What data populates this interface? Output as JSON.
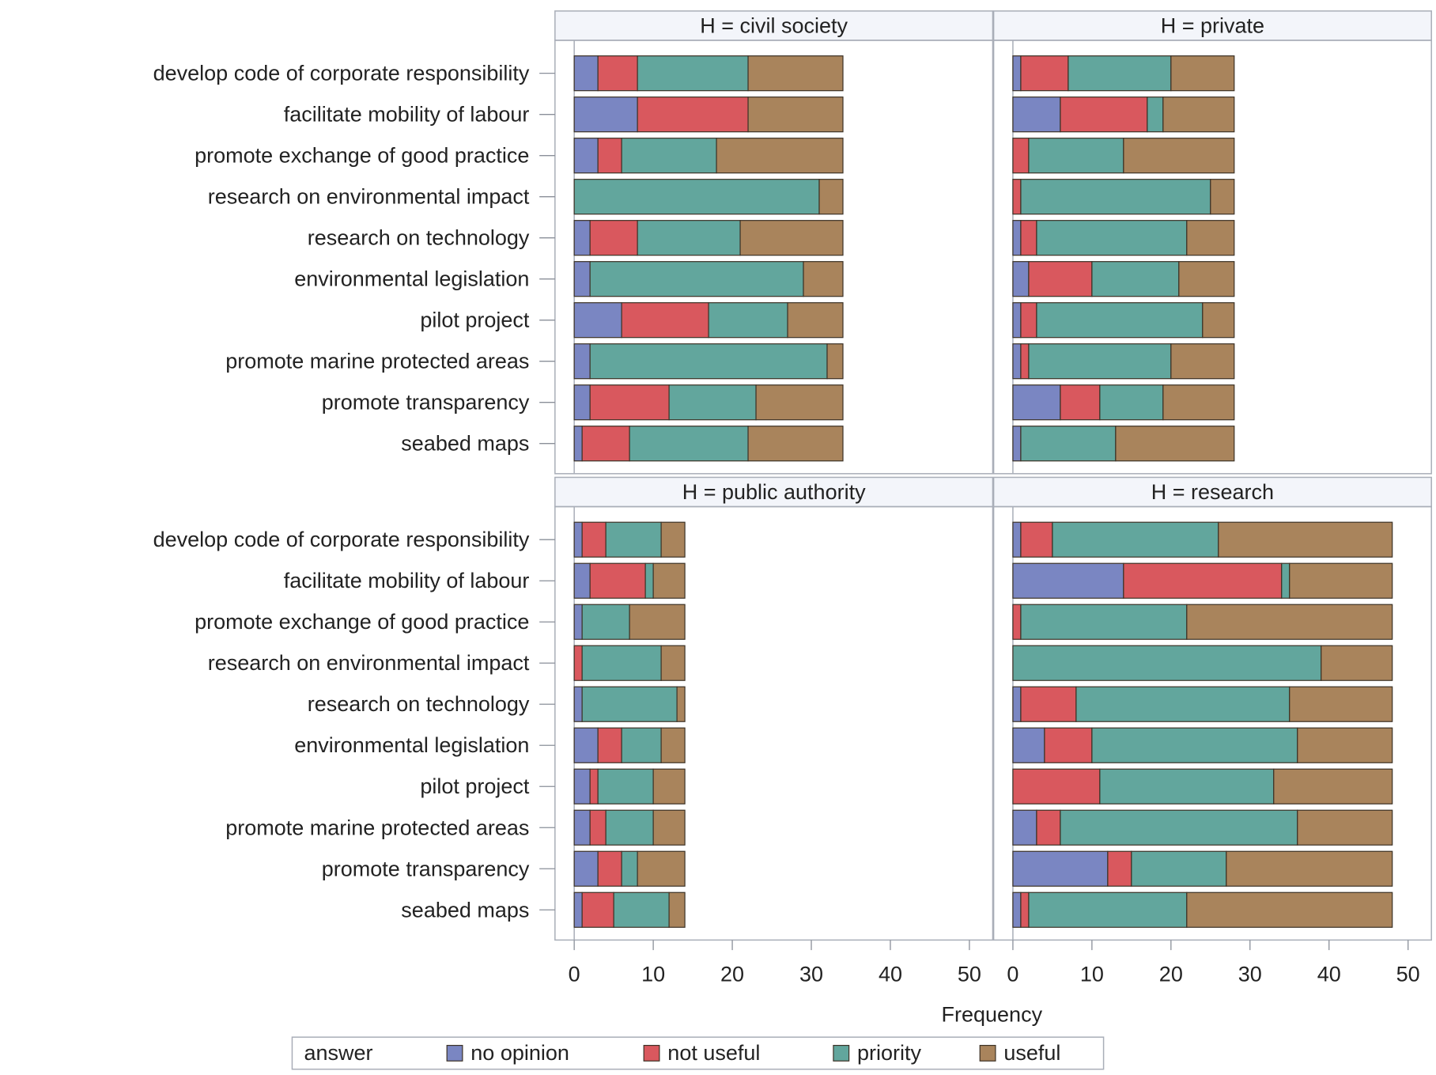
{
  "chart_data": {
    "type": "bar",
    "orientation": "horizontal",
    "stacked": true,
    "xlabel": "Frequency",
    "xlim": [
      0,
      53
    ],
    "xticks": [
      0,
      10,
      20,
      30,
      40,
      50
    ],
    "panel_label_prefix": "H = ",
    "categories": [
      "develop code of corporate responsibility",
      "facilitate mobility of labour",
      "promote exchange of good practice",
      "research on environmental impact",
      "research on technology",
      "environmental legislation",
      "pilot project",
      "promote marine protected areas",
      "promote transparency",
      "seabed maps"
    ],
    "legend": {
      "title": "answer",
      "position": "bottom",
      "entries": [
        "no opinion",
        "not useful",
        "priority",
        "useful"
      ]
    },
    "series_colors": {
      "no opinion": "#7a86c2",
      "not useful": "#d9585e",
      "priority": "#62a69d",
      "useful": "#a9845c"
    },
    "panels": [
      {
        "label": "civil society",
        "series": [
          {
            "name": "no opinion",
            "values": [
              3,
              8,
              3,
              0,
              2,
              2,
              6,
              2,
              2,
              1
            ]
          },
          {
            "name": "not useful",
            "values": [
              5,
              14,
              3,
              0,
              6,
              0,
              11,
              0,
              10,
              6
            ]
          },
          {
            "name": "priority",
            "values": [
              14,
              0,
              12,
              31,
              13,
              27,
              10,
              30,
              11,
              15
            ]
          },
          {
            "name": "useful",
            "values": [
              12,
              12,
              16,
              3,
              13,
              5,
              7,
              2,
              11,
              12
            ]
          }
        ]
      },
      {
        "label": "private",
        "series": [
          {
            "name": "no opinion",
            "values": [
              1,
              6,
              0,
              0,
              1,
              2,
              1,
              1,
              6,
              1
            ]
          },
          {
            "name": "not useful",
            "values": [
              6,
              11,
              2,
              1,
              2,
              8,
              2,
              1,
              5,
              0
            ]
          },
          {
            "name": "priority",
            "values": [
              13,
              2,
              12,
              24,
              19,
              11,
              21,
              18,
              8,
              12
            ]
          },
          {
            "name": "useful",
            "values": [
              8,
              9,
              14,
              3,
              6,
              7,
              4,
              8,
              9,
              15
            ]
          }
        ]
      },
      {
        "label": "public authority",
        "series": [
          {
            "name": "no opinion",
            "values": [
              1,
              2,
              1,
              0,
              1,
              3,
              2,
              2,
              3,
              1
            ]
          },
          {
            "name": "not useful",
            "values": [
              3,
              7,
              0,
              1,
              0,
              3,
              1,
              2,
              3,
              4
            ]
          },
          {
            "name": "priority",
            "values": [
              7,
              1,
              6,
              10,
              12,
              5,
              7,
              6,
              2,
              7
            ]
          },
          {
            "name": "useful",
            "values": [
              3,
              4,
              7,
              3,
              1,
              3,
              4,
              4,
              6,
              2
            ]
          }
        ]
      },
      {
        "label": "research",
        "series": [
          {
            "name": "no opinion",
            "values": [
              1,
              14,
              0,
              0,
              1,
              4,
              0,
              3,
              12,
              1
            ]
          },
          {
            "name": "not useful",
            "values": [
              4,
              20,
              1,
              0,
              7,
              6,
              11,
              3,
              3,
              1
            ]
          },
          {
            "name": "priority",
            "values": [
              21,
              1,
              21,
              39,
              27,
              26,
              22,
              30,
              12,
              20
            ]
          },
          {
            "name": "useful",
            "values": [
              22,
              13,
              26,
              9,
              13,
              12,
              15,
              12,
              21,
              26
            ]
          }
        ]
      }
    ]
  }
}
